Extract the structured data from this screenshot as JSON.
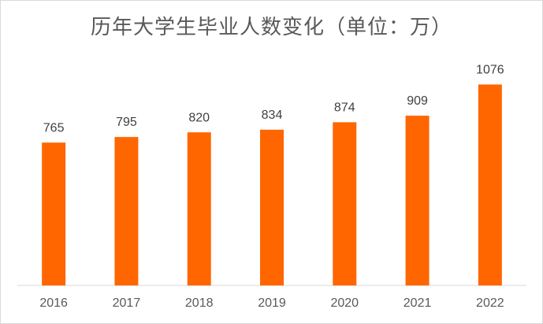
{
  "chart_data": {
    "type": "bar",
    "title": "历年大学生毕业人数变化（单位：万）",
    "categories": [
      "2016",
      "2017",
      "2018",
      "2019",
      "2020",
      "2021",
      "2022"
    ],
    "values": [
      765,
      795,
      820,
      834,
      874,
      909,
      1076
    ],
    "xlabel": "",
    "ylabel": "",
    "ylim": [
      0,
      1100
    ],
    "grid": false,
    "legend": "none",
    "bar_color": "#ff6600",
    "axis_color": "#d9d9d9"
  }
}
